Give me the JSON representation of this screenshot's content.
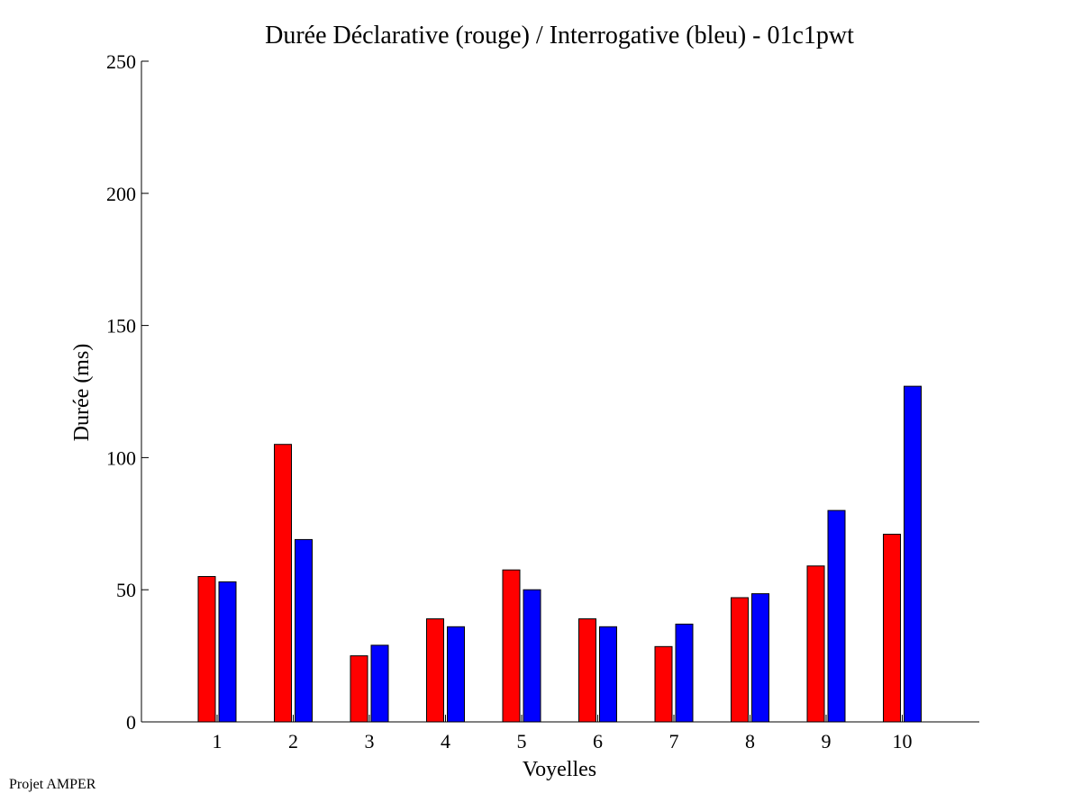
{
  "chart_data": {
    "type": "bar",
    "title": "Durée Déclarative (rouge) / Interrogative (bleu) - 01c1pwt",
    "xlabel": "Voyelles",
    "ylabel": "Durée (ms)",
    "categories": [
      "1",
      "2",
      "3",
      "4",
      "5",
      "6",
      "7",
      "8",
      "9",
      "10"
    ],
    "ylim": [
      0,
      250
    ],
    "yticks": [
      0,
      50,
      100,
      150,
      200,
      250
    ],
    "grid": false,
    "legend": "none",
    "series": [
      {
        "color": "#ff0000",
        "values": [
          55,
          105,
          25,
          39,
          57.5,
          39,
          28.5,
          47,
          59,
          71
        ]
      },
      {
        "color": "#0000ff",
        "values": [
          53,
          69,
          29,
          36,
          50,
          36,
          37,
          48.5,
          80,
          127
        ]
      }
    ]
  },
  "footer": {
    "text": "Projet AMPER"
  }
}
